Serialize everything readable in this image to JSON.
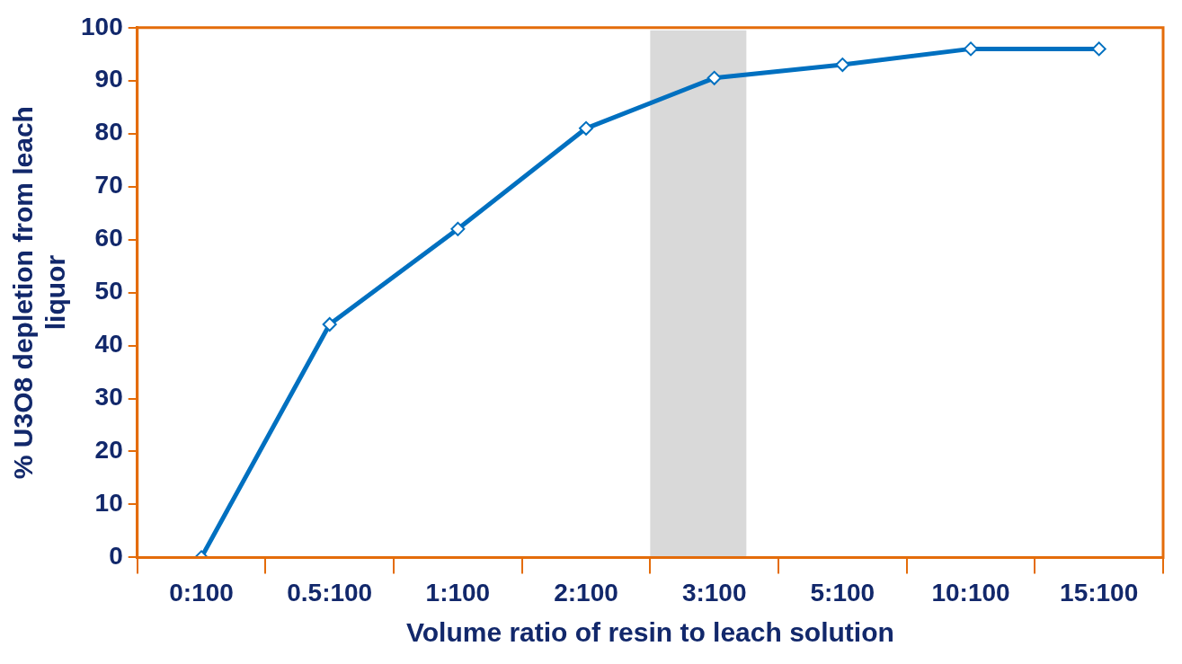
{
  "chart_data": {
    "type": "line",
    "xlabel": "Volume ratio of resin to leach solution",
    "ylabel": "% U3O8 depletion from leach liquor",
    "categories": [
      "0:100",
      "0.5:100",
      "1:100",
      "2:100",
      "3:100",
      "5:100",
      "10:100",
      "15:100"
    ],
    "series": [
      {
        "color": "#0070c0",
        "values": [
          0,
          44,
          62,
          81,
          90.5,
          93,
          96,
          96
        ]
      }
    ],
    "ylim": [
      0,
      100
    ],
    "yticks": [
      0,
      10,
      20,
      30,
      40,
      50,
      60,
      70,
      80,
      90,
      100
    ],
    "bands": [
      {
        "axis": "x",
        "from": "3:100",
        "to": "3:100",
        "color": "#d9d9d9"
      }
    ],
    "grid": false,
    "legend": false,
    "marker": "diamond",
    "line_style": "solid"
  }
}
